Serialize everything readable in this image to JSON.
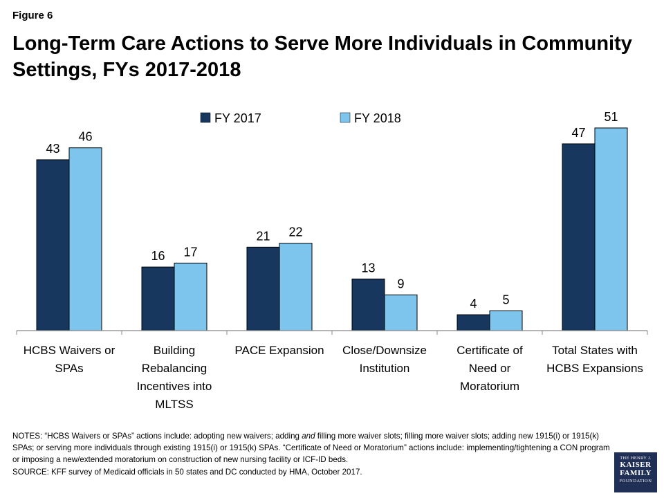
{
  "figure_label": "Figure 6",
  "title": "Long-Term Care Actions to Serve More Individuals in Community Settings, FYs 2017-2018",
  "notes": {
    "line1_prefix": "NOTES:  “HCBS Waivers or SPAs” actions include: adopting new waivers; adding ",
    "line1_em": "and",
    "line1_suffix": " filling more waiver slots; filling more waiver slots; adding new 1915(i)  or 1915(k)  SPAs; or serving more individuals through  existing 1915(i)  or 1915(k)  SPAs. “Certificate of Need or Moratorium” actions include: implementing/tightening a CON program or imposing a new/extended moratorium on construction  of new nursing facility or ICF-ID beds.",
    "source": "SOURCE:  KFF survey of Medicaid officials in 50  states and DC conducted by HMA,  October 2017."
  },
  "logo": {
    "line1": "THE HENRY J.",
    "line2": "KAISER",
    "line3": "FAMILY",
    "line4": "FOUNDATION"
  },
  "colors": {
    "fy2017": "#17375e",
    "fy2018": "#7dc5ec"
  },
  "chart_data": {
    "type": "bar",
    "categories": [
      [
        "HCBS Waivers or",
        "SPAs"
      ],
      [
        "Building",
        "Rebalancing",
        "Incentives into",
        "MLTSS"
      ],
      [
        "PACE Expansion"
      ],
      [
        "Close/Downsize",
        "Institution"
      ],
      [
        "Certificate of",
        "Need or",
        "Moratorium"
      ],
      [
        "Total States with",
        "HCBS Expansions"
      ]
    ],
    "series": [
      {
        "name": "FY 2017",
        "values": [
          43,
          16,
          21,
          13,
          4,
          47
        ]
      },
      {
        "name": "FY 2018",
        "values": [
          46,
          17,
          22,
          9,
          5,
          51
        ]
      }
    ],
    "ylim": [
      0,
      55
    ],
    "grid": false,
    "legend_position": "top"
  }
}
